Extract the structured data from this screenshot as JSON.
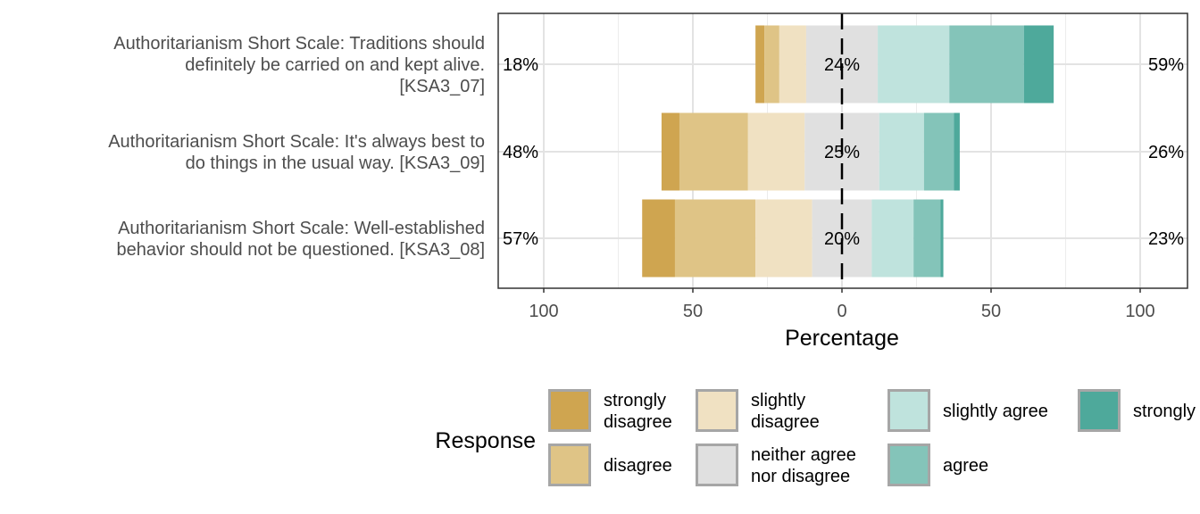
{
  "chart_data": {
    "type": "bar",
    "subtype": "diverging-stacked-likert",
    "xlabel": "Percentage",
    "xlim": [
      -115,
      115
    ],
    "x_ticks": [
      -100,
      -50,
      0,
      50,
      100
    ],
    "x_tick_labels": [
      "100",
      "50",
      "0",
      "50",
      "100"
    ],
    "grid": true,
    "legend_position": "bottom",
    "legend_title": "Response",
    "levels": [
      "strongly disagree",
      "disagree",
      "slightly disagree",
      "neither agree nor disagree",
      "slightly agree",
      "agree",
      "strongly agree"
    ],
    "legend_labels": [
      [
        "strongly",
        "disagree"
      ],
      [
        "disagree"
      ],
      [
        "slightly",
        "disagree"
      ],
      [
        "neither agree",
        "nor disagree"
      ],
      [
        "slightly agree"
      ],
      [
        "agree"
      ],
      [
        "strongly agree"
      ]
    ],
    "colors": [
      "#cfa550",
      "#dfc486",
      "#f0e1c2",
      "#e0e0e0",
      "#bfe3dd",
      "#84c4b9",
      "#4ea99b"
    ],
    "items": [
      {
        "label_lines": [
          "Authoritarianism Short Scale: Traditions should",
          "definitely be carried on and kept alive.",
          "[KSA3_07]"
        ],
        "values": [
          3,
          5,
          9,
          24,
          24,
          25,
          10
        ],
        "left_label": "18%",
        "center_label": "24%",
        "right_label": "59%"
      },
      {
        "label_lines": [
          "Authoritarianism Short Scale: It's always best to",
          "do things in the usual way. [KSA3_09]"
        ],
        "values": [
          6,
          23,
          19,
          25,
          15,
          10,
          2
        ],
        "left_label": "48%",
        "center_label": "25%",
        "right_label": "26%"
      },
      {
        "label_lines": [
          "Authoritarianism Short Scale: Well-established",
          "behavior should not be questioned. [KSA3_08]"
        ],
        "values": [
          11,
          27,
          19,
          20,
          14,
          9,
          1
        ],
        "left_label": "57%",
        "center_label": "20%",
        "right_label": "23%"
      }
    ]
  }
}
